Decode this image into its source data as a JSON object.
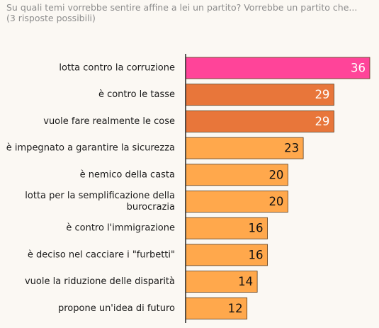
{
  "question": {
    "line1": "Su quali temi vorrebbe sentire affine a lei un partito? Vorrebbe un partito che...",
    "line2": "(3 risposte possibili)"
  },
  "chart_data": {
    "type": "bar",
    "orientation": "horizontal",
    "categories": [
      [
        "lotta contro la corruzione"
      ],
      [
        "è contro le  tasse"
      ],
      [
        "vuole fare realmente le cose"
      ],
      [
        "è impegnato a garantire la sicurezza"
      ],
      [
        "è nemico della casta"
      ],
      [
        "lotta per la semplificazione della",
        "burocrazia"
      ],
      [
        "è contro l'immigrazione"
      ],
      [
        "è deciso nel cacciare i \"furbetti\""
      ],
      [
        "vuole la riduzione delle disparità"
      ],
      [
        "propone un'idea di futuro"
      ]
    ],
    "values": [
      36,
      29,
      29,
      23,
      20,
      20,
      16,
      16,
      14,
      12
    ],
    "bar_colors": [
      "#ff4499",
      "#e8763a",
      "#e8763a",
      "#ffa84c",
      "#ffa84c",
      "#ffa84c",
      "#ffa84c",
      "#ffa84c",
      "#ffa84c",
      "#ffa84c"
    ],
    "value_label_colors": [
      "#ffffff",
      "#ffffff",
      "#ffffff",
      "#111111",
      "#111111",
      "#111111",
      "#111111",
      "#111111",
      "#111111",
      "#111111"
    ],
    "xlim": [
      0,
      36
    ],
    "grid": false,
    "legend": "none"
  }
}
